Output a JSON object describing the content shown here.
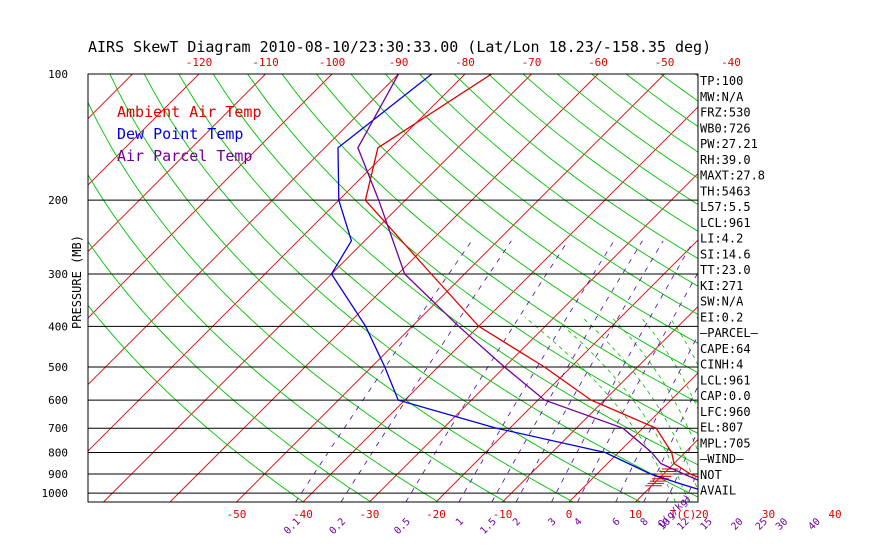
{
  "chart_data": {
    "type": "line",
    "title": "AIRS SkewT Diagram 2010-08-10/23:30:33.00 (Lat/Lon 18.23/-158.35 deg)",
    "ylabel": "PRESSURE (MB)",
    "y_scale": "log",
    "ylim": [
      1050,
      100
    ],
    "y_ticks": [
      "100",
      "200",
      "300",
      "400",
      "500",
      "600",
      "700",
      "800",
      "900",
      "1000"
    ],
    "x_ticks_bottom": [
      "-50",
      "-40",
      "-30",
      "-20",
      "-10",
      "0",
      "10",
      "20",
      "30",
      "40"
    ],
    "x_unit_bottom": "T(C)",
    "x_ticks_top": [
      "-120",
      "-110",
      "-100",
      "-90",
      "-80",
      "-70",
      "-60",
      "-50",
      "-40"
    ],
    "mixing_ratio_ticks": [
      "0.1",
      "0.2",
      "0.5",
      "1",
      "1.5",
      "2",
      "3",
      "4",
      "6",
      "8",
      "10",
      "12",
      "15",
      "20",
      "25",
      "30",
      "40"
    ],
    "mixing_ratio_unit": "Q(g/kg)",
    "legend": [
      {
        "label": "Ambient Air Temp",
        "color": "#e00000"
      },
      {
        "label": "Dew Point Temp",
        "color": "#0000e0"
      },
      {
        "label": "Air Parcel Temp",
        "color": "#70009a"
      }
    ],
    "series": [
      {
        "name": "Ambient Air Temp",
        "color": "#e00000",
        "points": [
          [
            -76,
            100
          ],
          [
            -82,
            150
          ],
          [
            -76,
            200
          ],
          [
            -55,
            300
          ],
          [
            -40,
            400
          ],
          [
            -24,
            500
          ],
          [
            -12,
            600
          ],
          [
            2,
            700
          ],
          [
            8,
            800
          ],
          [
            10,
            850
          ],
          [
            14,
            900
          ],
          [
            19,
            950
          ],
          [
            24,
            1000
          ]
        ]
      },
      {
        "name": "Dew Point Temp",
        "color": "#0000e0",
        "points": [
          [
            -85,
            100
          ],
          [
            -88,
            150
          ],
          [
            -80,
            200
          ],
          [
            -72,
            250
          ],
          [
            -70,
            300
          ],
          [
            -57,
            400
          ],
          [
            -48,
            500
          ],
          [
            -41,
            600
          ],
          [
            -22,
            700
          ],
          [
            -2,
            800
          ],
          [
            8,
            900
          ],
          [
            14,
            950
          ],
          [
            20,
            1000
          ]
        ]
      },
      {
        "name": "Air Parcel Temp",
        "color": "#70009a",
        "points": [
          [
            -90,
            100
          ],
          [
            -85,
            150
          ],
          [
            -74,
            200
          ],
          [
            -59,
            300
          ],
          [
            -43,
            400
          ],
          [
            -30,
            500
          ],
          [
            -19,
            600
          ],
          [
            -3,
            700
          ],
          [
            5,
            800
          ],
          [
            8,
            850
          ],
          [
            13,
            900
          ],
          [
            18,
            950
          ],
          [
            23,
            1000
          ]
        ]
      }
    ]
  },
  "indices": [
    "TP:100",
    "MW:N/A",
    "FRZ:530",
    "WB0:726",
    "PW:27.21",
    "RH:39.0",
    "MAXT:27.8",
    "TH:5463",
    "L57:5.5",
    "LCL:961",
    "LI:4.2",
    "SI:14.6",
    "TT:23.0",
    "KI:271",
    "SW:N/A",
    "EI:0.2",
    "—PARCEL—",
    "CAPE:64",
    "CINH:4",
    "LCL:961",
    "CAP:0.0",
    "LFC:960",
    "EL:807",
    "MPL:705",
    "—WIND—",
    "NOT",
    "AVAIL"
  ],
  "colors": {
    "ambient": "#e00000",
    "dewpoint": "#0000e0",
    "parcel": "#70009a",
    "isotherm": "#e00000",
    "dry_adiabat": "#00c000",
    "mixing_ratio": "#5000b0",
    "axis_labels_red": "#e00000",
    "axis_labels_purple": "#7000a0"
  }
}
